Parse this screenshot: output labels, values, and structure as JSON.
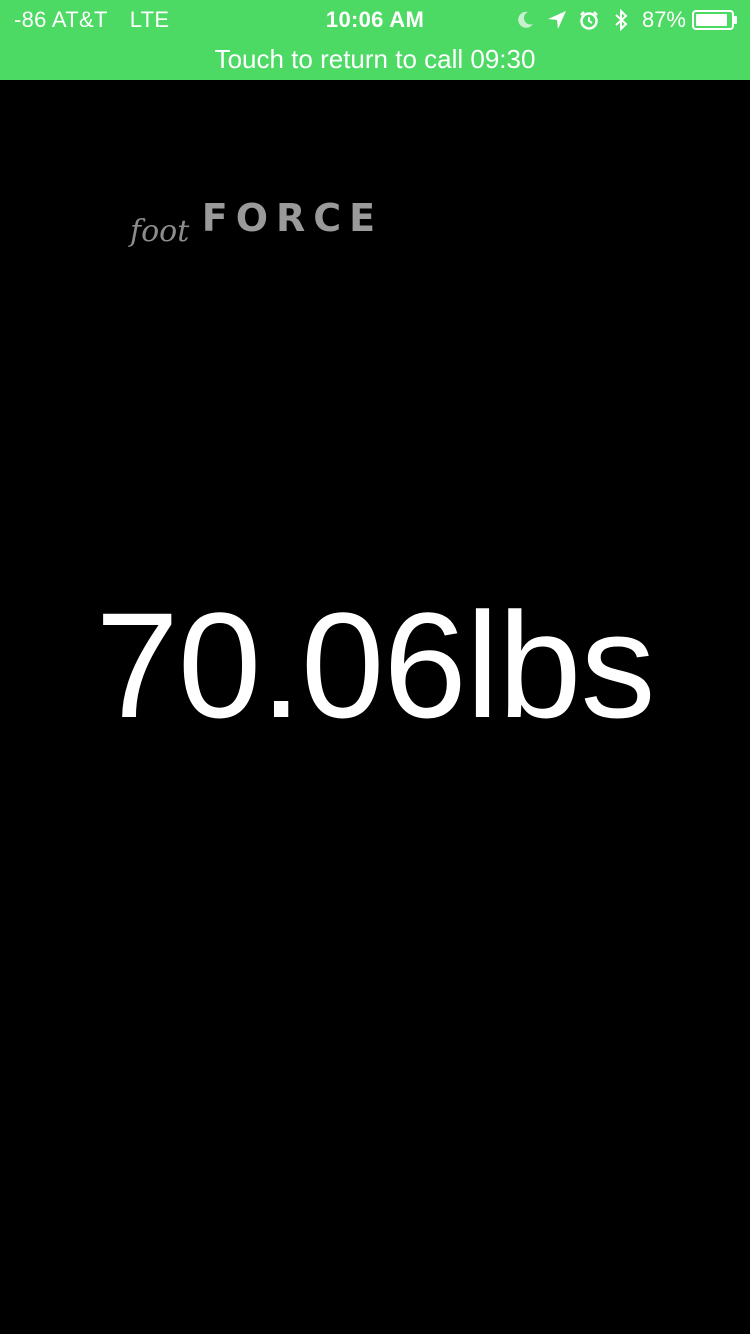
{
  "status_bar": {
    "signal": "-86",
    "carrier": "AT&T",
    "network": "LTE",
    "time": "10:06 AM",
    "battery_percent": "87%",
    "icons": [
      "moon-icon",
      "location-arrow-icon",
      "alarm-icon",
      "bluetooth-icon",
      "battery-icon"
    ],
    "background_color": "#4cd964"
  },
  "call_banner": {
    "label": "Touch to return to call 09:30"
  },
  "logo": {
    "foot": "foot",
    "force": "FORCE"
  },
  "reading": {
    "value": "70.06lbs"
  }
}
